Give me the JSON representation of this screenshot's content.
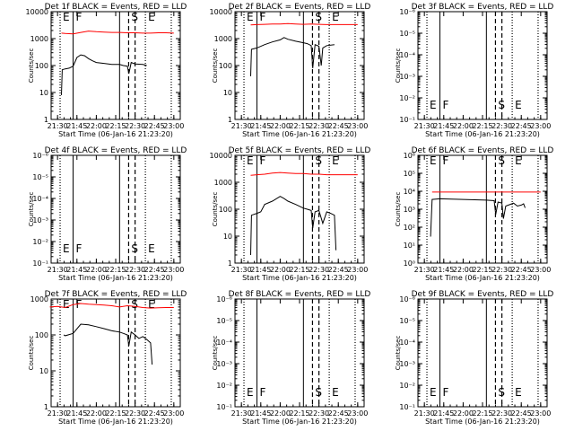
{
  "chart_data": {
    "type": "line",
    "layout": "3x3 grid of panels",
    "shared": {
      "x_tick_labels": [
        "21:30",
        "21:45",
        "22:00",
        "22:15",
        "22:30",
        "22:45",
        "23:00"
      ],
      "x_range_hours": [
        21.417,
        23.083
      ],
      "y_tick_labels_counts": [
        "1",
        "10",
        "100",
        "1000",
        "10000"
      ],
      "y_tick_labels_empty": [
        "10⁻¹",
        "10⁻²",
        "10⁻³",
        "10⁻⁴",
        "10⁻⁵",
        "10⁻⁶"
      ],
      "y_tick_labels_empty_order": "bottom-to-top",
      "ylabel": "Counts/sec",
      "xlabel": "Start Time (06-Jan-16 21:23:20)",
      "series_colors": {
        "events": "#000000",
        "lld": "#ff0000"
      },
      "markers": [
        {
          "label": "E",
          "x": 21.533,
          "style": "dotted"
        },
        {
          "label": "F",
          "x": 21.7,
          "style": "solid"
        },
        {
          "label": "",
          "x": 22.3,
          "style": "solid"
        },
        {
          "label": "S",
          "x": 22.417,
          "style": "dashed"
        },
        {
          "label": "",
          "x": 22.5,
          "style": "dashed"
        },
        {
          "label": "E",
          "x": 22.633,
          "style": "dotted"
        },
        {
          "label": "",
          "x": 22.967,
          "style": "dotted"
        }
      ]
    },
    "panels": [
      {
        "title": "Det 1f BLACK = Events, RED = LLD",
        "empty": false,
        "ylim_log": [
          0,
          4
        ],
        "events": [
          [
            21.55,
            8
          ],
          [
            21.56,
            70
          ],
          [
            21.6,
            75
          ],
          [
            21.65,
            80
          ],
          [
            21.7,
            95
          ],
          [
            21.75,
            200
          ],
          [
            21.8,
            250
          ],
          [
            21.85,
            230
          ],
          [
            21.9,
            180
          ],
          [
            21.95,
            150
          ],
          [
            22.0,
            130
          ],
          [
            22.1,
            120
          ],
          [
            22.2,
            110
          ],
          [
            22.3,
            110
          ],
          [
            22.35,
            100
          ],
          [
            22.4,
            95
          ],
          [
            22.42,
            50
          ],
          [
            22.45,
            130
          ],
          [
            22.5,
            115
          ],
          [
            22.6,
            110
          ],
          [
            22.65,
            100
          ]
        ],
        "lld": [
          [
            21.55,
            1600
          ],
          [
            21.6,
            1550
          ],
          [
            21.7,
            1500
          ],
          [
            21.8,
            1700
          ],
          [
            21.9,
            1900
          ],
          [
            22.0,
            1800
          ],
          [
            22.1,
            1750
          ],
          [
            22.2,
            1700
          ],
          [
            22.3,
            1700
          ],
          [
            22.4,
            1650
          ],
          [
            22.5,
            1650
          ],
          [
            22.6,
            1600
          ],
          [
            22.7,
            1600
          ],
          [
            22.8,
            1650
          ],
          [
            22.9,
            1650
          ],
          [
            23.0,
            1600
          ]
        ]
      },
      {
        "title": "Det 2f BLACK = Events, RED = LLD",
        "empty": false,
        "ylim_log": [
          0,
          4
        ],
        "events": [
          [
            21.62,
            40
          ],
          [
            21.63,
            400
          ],
          [
            21.7,
            450
          ],
          [
            21.8,
            600
          ],
          [
            21.9,
            750
          ],
          [
            22.0,
            900
          ],
          [
            22.05,
            1100
          ],
          [
            22.1,
            950
          ],
          [
            22.2,
            800
          ],
          [
            22.3,
            700
          ],
          [
            22.35,
            650
          ],
          [
            22.4,
            550
          ],
          [
            22.42,
            80
          ],
          [
            22.45,
            600
          ],
          [
            22.5,
            520
          ],
          [
            22.53,
            100
          ],
          [
            22.55,
            450
          ],
          [
            22.6,
            550
          ],
          [
            22.7,
            600
          ]
        ],
        "lld": [
          [
            21.62,
            3200
          ],
          [
            21.7,
            3300
          ],
          [
            21.8,
            3400
          ],
          [
            21.9,
            3500
          ],
          [
            22.0,
            3500
          ],
          [
            22.1,
            3600
          ],
          [
            22.2,
            3500
          ],
          [
            22.3,
            3400
          ],
          [
            22.4,
            3500
          ],
          [
            22.5,
            3400
          ],
          [
            22.6,
            3300
          ],
          [
            22.7,
            3300
          ],
          [
            22.8,
            3300
          ],
          [
            22.9,
            3300
          ],
          [
            23.0,
            3300
          ]
        ]
      },
      {
        "title": "Det 3f BLACK = Events, RED = LLD",
        "empty": true
      },
      {
        "title": "Det 4f BLACK = Events, RED = LLD",
        "empty": true
      },
      {
        "title": "Det 5f BLACK = Events, RED = LLD",
        "empty": false,
        "ylim_log": [
          0,
          4
        ],
        "events": [
          [
            21.62,
            2
          ],
          [
            21.63,
            60
          ],
          [
            21.7,
            70
          ],
          [
            21.75,
            80
          ],
          [
            21.8,
            150
          ],
          [
            21.9,
            200
          ],
          [
            22.0,
            300
          ],
          [
            22.05,
            250
          ],
          [
            22.1,
            200
          ],
          [
            22.2,
            150
          ],
          [
            22.3,
            110
          ],
          [
            22.35,
            100
          ],
          [
            22.4,
            90
          ],
          [
            22.42,
            20
          ],
          [
            22.45,
            80
          ],
          [
            22.5,
            90
          ],
          [
            22.55,
            30
          ],
          [
            22.6,
            80
          ],
          [
            22.65,
            70
          ],
          [
            22.7,
            60
          ],
          [
            22.72,
            3
          ]
        ],
        "lld": [
          [
            21.62,
            1800
          ],
          [
            21.7,
            1900
          ],
          [
            21.8,
            2000
          ],
          [
            21.9,
            2200
          ],
          [
            22.0,
            2300
          ],
          [
            22.1,
            2200
          ],
          [
            22.2,
            2100
          ],
          [
            22.3,
            2100
          ],
          [
            22.4,
            2000
          ],
          [
            22.5,
            2000
          ],
          [
            22.6,
            1900
          ],
          [
            22.7,
            1900
          ],
          [
            22.8,
            1900
          ],
          [
            22.9,
            1900
          ],
          [
            23.0,
            1900
          ]
        ]
      },
      {
        "title": "Det 6f BLACK = Events, RED = LLD",
        "empty": false,
        "ylim_log": [
          0,
          6
        ],
        "y_tick_labels": [
          "10⁰",
          "10¹",
          "10²",
          "10³",
          "10⁴",
          "10⁵",
          "10⁶"
        ],
        "events": [
          [
            21.58,
            30
          ],
          [
            21.6,
            3500
          ],
          [
            21.7,
            3800
          ],
          [
            21.8,
            3700
          ],
          [
            21.9,
            3600
          ],
          [
            22.0,
            3500
          ],
          [
            22.1,
            3400
          ],
          [
            22.2,
            3300
          ],
          [
            22.3,
            3200
          ],
          [
            22.4,
            3000
          ],
          [
            22.42,
            500
          ],
          [
            22.45,
            2500
          ],
          [
            22.5,
            2200
          ],
          [
            22.52,
            300
          ],
          [
            22.55,
            1500
          ],
          [
            22.6,
            1800
          ],
          [
            22.65,
            2200
          ],
          [
            22.7,
            1500
          ],
          [
            22.75,
            1700
          ],
          [
            22.78,
            2000
          ],
          [
            22.8,
            1200
          ]
        ],
        "lld": [
          [
            21.6,
            9000
          ],
          [
            21.7,
            9000
          ],
          [
            21.8,
            9000
          ],
          [
            21.9,
            9000
          ],
          [
            22.0,
            9000
          ],
          [
            22.1,
            9000
          ],
          [
            22.2,
            9000
          ],
          [
            22.3,
            9000
          ],
          [
            22.4,
            9000
          ],
          [
            22.5,
            9000
          ],
          [
            22.6,
            9000
          ],
          [
            22.7,
            9000
          ],
          [
            22.8,
            9000
          ],
          [
            22.9,
            9000
          ],
          [
            23.0,
            9000
          ]
        ]
      },
      {
        "title": "Det 7f BLACK = Events, RED = LLD",
        "empty": false,
        "ylim_log": [
          0,
          3
        ],
        "y_tick_labels": [
          "1",
          "10",
          "100",
          "1000"
        ],
        "events": [
          [
            21.58,
            100
          ],
          [
            21.6,
            95
          ],
          [
            21.7,
            110
          ],
          [
            21.8,
            200
          ],
          [
            21.9,
            190
          ],
          [
            22.0,
            170
          ],
          [
            22.1,
            150
          ],
          [
            22.2,
            130
          ],
          [
            22.3,
            120
          ],
          [
            22.35,
            110
          ],
          [
            22.4,
            100
          ],
          [
            22.42,
            50
          ],
          [
            22.45,
            120
          ],
          [
            22.5,
            100
          ],
          [
            22.55,
            80
          ],
          [
            22.6,
            90
          ],
          [
            22.65,
            75
          ],
          [
            22.7,
            60
          ],
          [
            22.72,
            15
          ]
        ],
        "lld": [
          [
            21.4,
            600
          ],
          [
            21.5,
            620
          ],
          [
            21.6,
            580
          ],
          [
            21.7,
            700
          ],
          [
            21.8,
            750
          ],
          [
            21.9,
            720
          ],
          [
            22.0,
            700
          ],
          [
            22.1,
            680
          ],
          [
            22.2,
            650
          ],
          [
            22.3,
            600
          ],
          [
            22.4,
            650
          ],
          [
            22.5,
            620
          ],
          [
            22.6,
            580
          ],
          [
            22.7,
            560
          ],
          [
            22.8,
            570
          ],
          [
            22.9,
            580
          ],
          [
            23.0,
            580
          ]
        ]
      },
      {
        "title": "Det 8f BLACK = Events, RED = LLD",
        "empty": true
      },
      {
        "title": "Det 9f BLACK = Events, RED = LLD",
        "empty": true
      }
    ]
  }
}
